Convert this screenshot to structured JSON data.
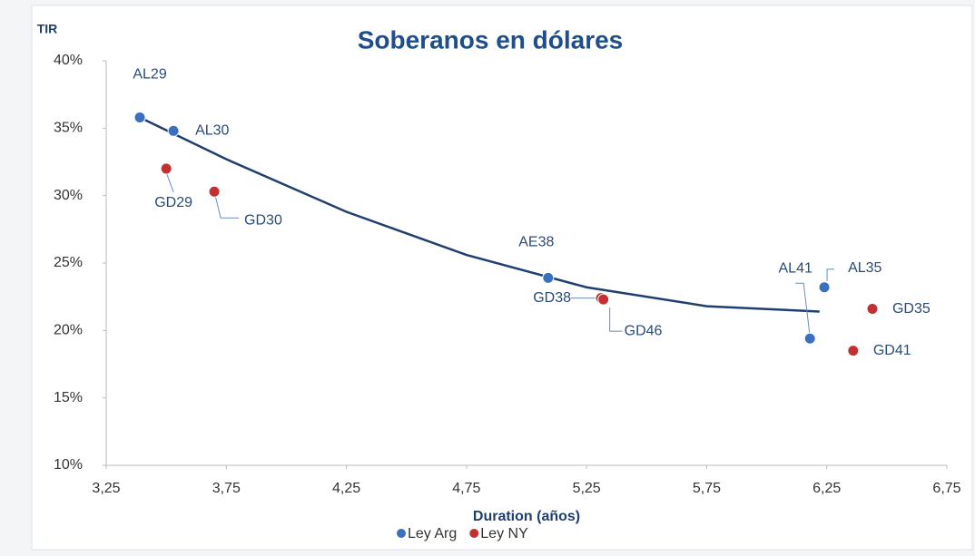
{
  "chart_data": {
    "type": "scatter",
    "title": "Soberanos en dólares",
    "y_label": "TIR",
    "x_label": "Duration (años)",
    "xlim": [
      3.25,
      6.75
    ],
    "xticks": [
      {
        "value": 3.25,
        "label": "3,25"
      },
      {
        "value": 3.75,
        "label": "3,75"
      },
      {
        "value": 4.25,
        "label": "4,25"
      },
      {
        "value": 4.75,
        "label": "4,75"
      },
      {
        "value": 5.25,
        "label": "5,25"
      },
      {
        "value": 5.75,
        "label": "5,75"
      },
      {
        "value": 6.25,
        "label": "6,25"
      },
      {
        "value": 6.75,
        "label": "6,75"
      }
    ],
    "ylim": [
      10,
      40
    ],
    "yticks": [
      {
        "value": 10,
        "label": "10%"
      },
      {
        "value": 15,
        "label": "15%"
      },
      {
        "value": 20,
        "label": "20%"
      },
      {
        "value": 25,
        "label": "25%"
      },
      {
        "value": 30,
        "label": "30%"
      },
      {
        "value": 35,
        "label": "35%"
      },
      {
        "value": 40,
        "label": "40%"
      }
    ],
    "grid": false,
    "legend": "bottom",
    "series": [
      {
        "name": "Ley Arg",
        "color": "#3b70c0",
        "labels": [
          "AL29",
          "AL30",
          "AE38",
          "AL41",
          "AL35"
        ],
        "x": [
          3.39,
          3.53,
          5.09,
          6.18,
          6.24
        ],
        "values": [
          35.8,
          34.8,
          23.9,
          19.4,
          23.2
        ]
      },
      {
        "name": "Ley NY",
        "color": "#c43030",
        "labels": [
          "GD29",
          "GD30",
          "GD38",
          "GD46",
          "GD35",
          "GD41"
        ],
        "x": [
          3.5,
          3.7,
          5.31,
          5.32,
          6.44,
          6.36
        ],
        "values": [
          32.0,
          30.3,
          22.4,
          22.3,
          21.6,
          18.5
        ]
      }
    ],
    "trendline": {
      "color": "#1f3f6e",
      "x": [
        3.39,
        3.75,
        4.25,
        4.75,
        5.25,
        5.75,
        6.22
      ],
      "values": [
        35.8,
        32.7,
        28.8,
        25.6,
        23.2,
        21.8,
        21.4
      ]
    }
  }
}
